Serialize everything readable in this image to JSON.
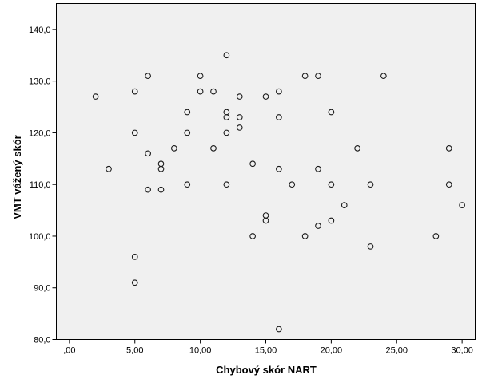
{
  "chart_data": {
    "type": "scatter",
    "xlabel": "Chybový skór NART",
    "ylabel": "VMT vážený skór",
    "xlim": [
      -1,
      31
    ],
    "ylim": [
      80,
      145
    ],
    "x_ticks": [
      0,
      5,
      10,
      15,
      20,
      25,
      30
    ],
    "x_tick_labels": [
      ",00",
      "5,00",
      "10,00",
      "15,00",
      "20,00",
      "25,00",
      "30,00"
    ],
    "y_ticks": [
      80,
      90,
      100,
      110,
      120,
      130,
      140
    ],
    "y_tick_labels": [
      "80,0",
      "90,0",
      "100,0",
      "110,0",
      "120,0",
      "130,0",
      "140,0"
    ],
    "grid": false,
    "background": "#f0f0f0",
    "marker_color": "#1a1a1a",
    "points": [
      {
        "x": 2,
        "y": 127
      },
      {
        "x": 3,
        "y": 113
      },
      {
        "x": 5,
        "y": 128
      },
      {
        "x": 5,
        "y": 120
      },
      {
        "x": 5,
        "y": 96
      },
      {
        "x": 5,
        "y": 91
      },
      {
        "x": 6,
        "y": 131
      },
      {
        "x": 6,
        "y": 116
      },
      {
        "x": 6,
        "y": 109
      },
      {
        "x": 7,
        "y": 114
      },
      {
        "x": 7,
        "y": 113
      },
      {
        "x": 7,
        "y": 109
      },
      {
        "x": 8,
        "y": 117
      },
      {
        "x": 9,
        "y": 124
      },
      {
        "x": 9,
        "y": 120
      },
      {
        "x": 9,
        "y": 110
      },
      {
        "x": 10,
        "y": 131
      },
      {
        "x": 10,
        "y": 128
      },
      {
        "x": 11,
        "y": 128
      },
      {
        "x": 11,
        "y": 117
      },
      {
        "x": 12,
        "y": 135
      },
      {
        "x": 12,
        "y": 124
      },
      {
        "x": 12,
        "y": 123
      },
      {
        "x": 12,
        "y": 120
      },
      {
        "x": 12,
        "y": 110
      },
      {
        "x": 13,
        "y": 127
      },
      {
        "x": 13,
        "y": 123
      },
      {
        "x": 13,
        "y": 121
      },
      {
        "x": 14,
        "y": 114
      },
      {
        "x": 14,
        "y": 100
      },
      {
        "x": 15,
        "y": 127
      },
      {
        "x": 15,
        "y": 104
      },
      {
        "x": 15,
        "y": 103
      },
      {
        "x": 16,
        "y": 128
      },
      {
        "x": 16,
        "y": 123
      },
      {
        "x": 16,
        "y": 113
      },
      {
        "x": 16,
        "y": 82
      },
      {
        "x": 17,
        "y": 110
      },
      {
        "x": 18,
        "y": 131
      },
      {
        "x": 18,
        "y": 100
      },
      {
        "x": 19,
        "y": 131
      },
      {
        "x": 19,
        "y": 113
      },
      {
        "x": 19,
        "y": 102
      },
      {
        "x": 20,
        "y": 124
      },
      {
        "x": 20,
        "y": 110
      },
      {
        "x": 20,
        "y": 103
      },
      {
        "x": 21,
        "y": 106
      },
      {
        "x": 22,
        "y": 117
      },
      {
        "x": 23,
        "y": 110
      },
      {
        "x": 23,
        "y": 98
      },
      {
        "x": 24,
        "y": 131
      },
      {
        "x": 28,
        "y": 100
      },
      {
        "x": 29,
        "y": 117
      },
      {
        "x": 29,
        "y": 110
      },
      {
        "x": 30,
        "y": 106
      }
    ]
  }
}
